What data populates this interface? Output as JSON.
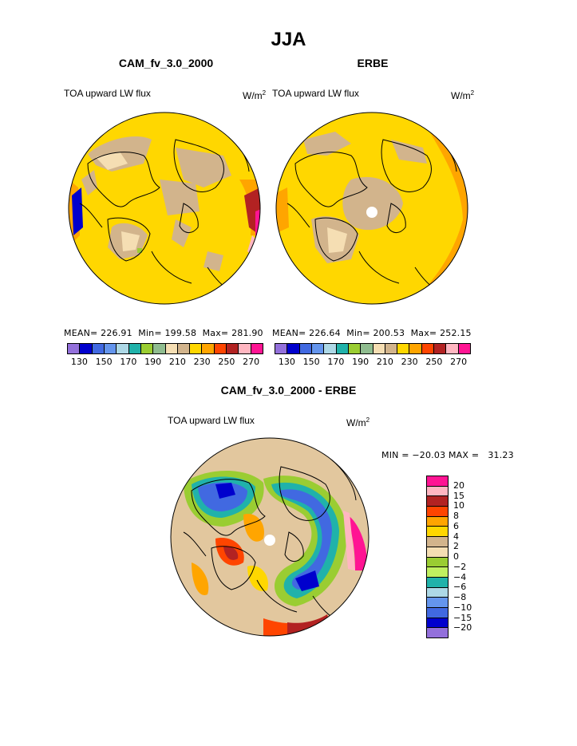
{
  "title": "JJA",
  "panels": [
    {
      "title": "CAM_fv_3.0_2000",
      "variable": "TOA upward LW flux",
      "unit_base": "W/m",
      "unit_exp": "2",
      "stats": {
        "mean_label": "MEAN=",
        "mean": "226.91",
        "min_label": "Min=",
        "min": "199.58",
        "max_label": "Max=",
        "max": "281.90"
      }
    },
    {
      "title": "ERBE",
      "variable": "TOA upward LW flux",
      "unit_base": "W/m",
      "unit_exp": "2",
      "stats": {
        "mean_label": "MEAN=",
        "mean": "226.64",
        "min_label": "Min=",
        "min": "200.53",
        "max_label": "Max=",
        "max": "252.15"
      }
    }
  ],
  "field_colorbar": {
    "colors": [
      "#9370db",
      "#0000cd",
      "#4169e1",
      "#6495ed",
      "#add8e6",
      "#20b2aa",
      "#9acd32",
      "#8fbc8f",
      "#f5deb3",
      "#d2b48c",
      "#ffd700",
      "#ffa500",
      "#ff4500",
      "#b22222",
      "#ffb6c1",
      "#ff1493"
    ],
    "tick_labels": [
      "130",
      "150",
      "170",
      "190",
      "210",
      "230",
      "250",
      "270"
    ]
  },
  "difference": {
    "title": "CAM_fv_3.0_2000 - ERBE",
    "variable": "TOA upward LW flux",
    "unit_base": "W/m",
    "unit_exp": "2",
    "minmax_text": "MIN = −20.03 MAX =   31.23",
    "colorbar": {
      "colors": [
        "#ff1493",
        "#ffb6c1",
        "#b22222",
        "#ff4500",
        "#ffa500",
        "#ffd700",
        "#d2b48c",
        "#f5deb3",
        "#9acd32",
        "#c0f060",
        "#20b2aa",
        "#add8e6",
        "#6495ed",
        "#4169e1",
        "#0000cd",
        "#9370db"
      ],
      "tick_labels": [
        "20",
        "15",
        "10",
        "8",
        "6",
        "4",
        "2",
        "0",
        "−2",
        "−4",
        "−6",
        "−8",
        "−10",
        "−15",
        "−20"
      ]
    }
  }
}
